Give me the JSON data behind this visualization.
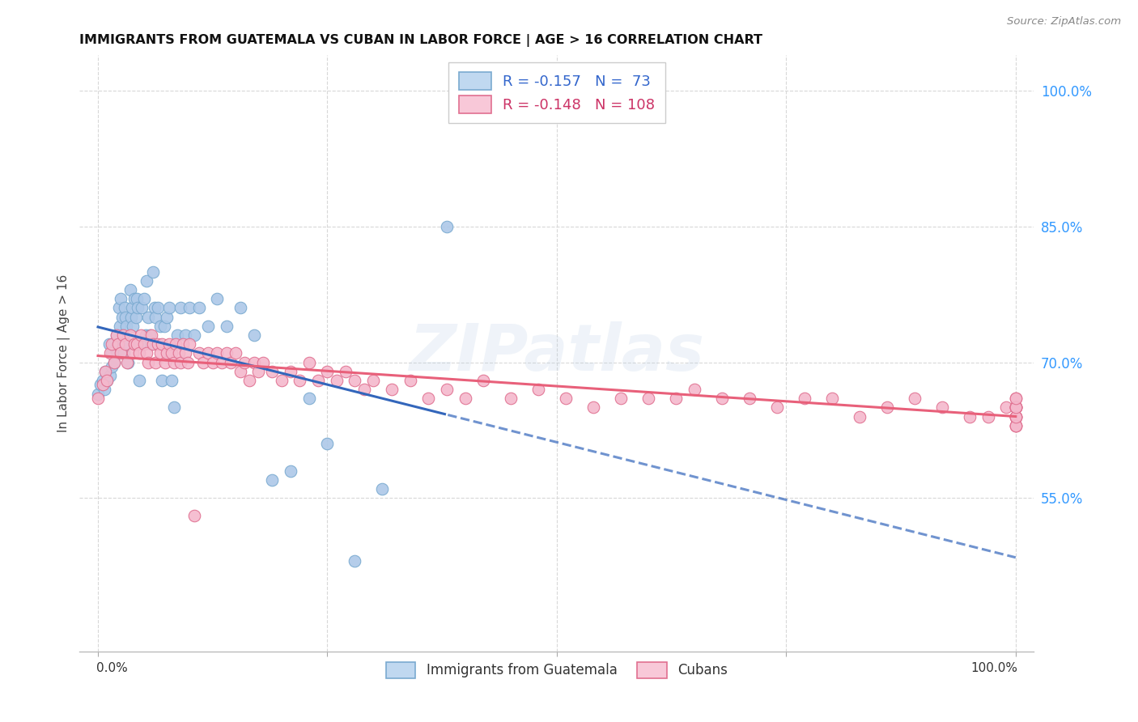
{
  "title": "IMMIGRANTS FROM GUATEMALA VS CUBAN IN LABOR FORCE | AGE > 16 CORRELATION CHART",
  "source": "Source: ZipAtlas.com",
  "ylabel": "In Labor Force | Age > 16",
  "xlim": [
    -0.02,
    1.02
  ],
  "ylim": [
    0.38,
    1.04
  ],
  "yticks": [
    0.55,
    0.7,
    0.85,
    1.0
  ],
  "ytick_labels": [
    "55.0%",
    "70.0%",
    "85.0%",
    "100.0%"
  ],
  "background_color": "#ffffff",
  "grid_color": "#d8d8d8",
  "watermark": "ZIPatlas",
  "series1_color": "#adc8e8",
  "series1_edge": "#7aaad0",
  "series1_line_color": "#3366bb",
  "series2_color": "#f4b8cc",
  "series2_edge": "#e07090",
  "series2_line_color": "#e8607a",
  "legend_R1": "-0.157",
  "legend_N1": "73",
  "legend_R2": "-0.148",
  "legend_N2": "108",
  "legend_patch_color1": "#c0d8f0",
  "legend_patch_edge1": "#7aaad0",
  "legend_patch_color2": "#f8c8d8",
  "legend_patch_edge2": "#e07090",
  "label1": "Immigrants from Guatemala",
  "label2": "Cubans",
  "series1_x": [
    0.0,
    0.003,
    0.005,
    0.007,
    0.008,
    0.01,
    0.012,
    0.013,
    0.015,
    0.015,
    0.017,
    0.018,
    0.019,
    0.02,
    0.021,
    0.022,
    0.023,
    0.024,
    0.025,
    0.026,
    0.027,
    0.028,
    0.029,
    0.03,
    0.031,
    0.032,
    0.033,
    0.035,
    0.036,
    0.037,
    0.038,
    0.04,
    0.041,
    0.042,
    0.043,
    0.045,
    0.046,
    0.048,
    0.05,
    0.052,
    0.053,
    0.055,
    0.056,
    0.058,
    0.06,
    0.062,
    0.063,
    0.065,
    0.068,
    0.07,
    0.072,
    0.075,
    0.078,
    0.08,
    0.083,
    0.086,
    0.09,
    0.095,
    0.1,
    0.105,
    0.11,
    0.12,
    0.13,
    0.14,
    0.155,
    0.17,
    0.19,
    0.21,
    0.23,
    0.25,
    0.28,
    0.31,
    0.38
  ],
  "series1_y": [
    0.665,
    0.675,
    0.68,
    0.67,
    0.69,
    0.68,
    0.72,
    0.685,
    0.71,
    0.695,
    0.72,
    0.7,
    0.715,
    0.73,
    0.71,
    0.72,
    0.76,
    0.74,
    0.77,
    0.75,
    0.73,
    0.71,
    0.76,
    0.75,
    0.74,
    0.72,
    0.7,
    0.78,
    0.75,
    0.76,
    0.74,
    0.77,
    0.75,
    0.77,
    0.76,
    0.68,
    0.72,
    0.76,
    0.77,
    0.73,
    0.79,
    0.75,
    0.73,
    0.72,
    0.8,
    0.76,
    0.75,
    0.76,
    0.74,
    0.68,
    0.74,
    0.75,
    0.76,
    0.68,
    0.65,
    0.73,
    0.76,
    0.73,
    0.76,
    0.73,
    0.76,
    0.74,
    0.77,
    0.74,
    0.76,
    0.73,
    0.57,
    0.58,
    0.66,
    0.61,
    0.48,
    0.56,
    0.85
  ],
  "series2_x": [
    0.0,
    0.005,
    0.008,
    0.01,
    0.013,
    0.015,
    0.018,
    0.02,
    0.022,
    0.025,
    0.027,
    0.03,
    0.032,
    0.035,
    0.038,
    0.04,
    0.042,
    0.045,
    0.047,
    0.05,
    0.053,
    0.055,
    0.058,
    0.06,
    0.063,
    0.065,
    0.068,
    0.07,
    0.073,
    0.075,
    0.078,
    0.08,
    0.083,
    0.085,
    0.088,
    0.09,
    0.093,
    0.095,
    0.098,
    0.1,
    0.105,
    0.11,
    0.115,
    0.12,
    0.125,
    0.13,
    0.135,
    0.14,
    0.145,
    0.15,
    0.155,
    0.16,
    0.165,
    0.17,
    0.175,
    0.18,
    0.19,
    0.2,
    0.21,
    0.22,
    0.23,
    0.24,
    0.25,
    0.26,
    0.27,
    0.28,
    0.29,
    0.3,
    0.32,
    0.34,
    0.36,
    0.38,
    0.4,
    0.42,
    0.45,
    0.48,
    0.51,
    0.54,
    0.57,
    0.6,
    0.63,
    0.65,
    0.68,
    0.71,
    0.74,
    0.77,
    0.8,
    0.83,
    0.86,
    0.89,
    0.92,
    0.95,
    0.97,
    0.99,
    1.0,
    1.0,
    1.0,
    1.0,
    1.0,
    1.0,
    1.0,
    1.0,
    1.0,
    1.0,
    1.0,
    1.0,
    1.0,
    1.0
  ],
  "series2_y": [
    0.66,
    0.675,
    0.69,
    0.68,
    0.71,
    0.72,
    0.7,
    0.73,
    0.72,
    0.71,
    0.73,
    0.72,
    0.7,
    0.73,
    0.71,
    0.72,
    0.72,
    0.71,
    0.73,
    0.72,
    0.71,
    0.7,
    0.73,
    0.72,
    0.7,
    0.72,
    0.71,
    0.72,
    0.7,
    0.71,
    0.72,
    0.71,
    0.7,
    0.72,
    0.71,
    0.7,
    0.72,
    0.71,
    0.7,
    0.72,
    0.53,
    0.71,
    0.7,
    0.71,
    0.7,
    0.71,
    0.7,
    0.71,
    0.7,
    0.71,
    0.69,
    0.7,
    0.68,
    0.7,
    0.69,
    0.7,
    0.69,
    0.68,
    0.69,
    0.68,
    0.7,
    0.68,
    0.69,
    0.68,
    0.69,
    0.68,
    0.67,
    0.68,
    0.67,
    0.68,
    0.66,
    0.67,
    0.66,
    0.68,
    0.66,
    0.67,
    0.66,
    0.65,
    0.66,
    0.66,
    0.66,
    0.67,
    0.66,
    0.66,
    0.65,
    0.66,
    0.66,
    0.64,
    0.65,
    0.66,
    0.65,
    0.64,
    0.64,
    0.65,
    0.64,
    0.65,
    0.66,
    0.65,
    0.63,
    0.64,
    0.65,
    0.63,
    0.64,
    0.65,
    0.63,
    0.64,
    0.65,
    0.66
  ]
}
